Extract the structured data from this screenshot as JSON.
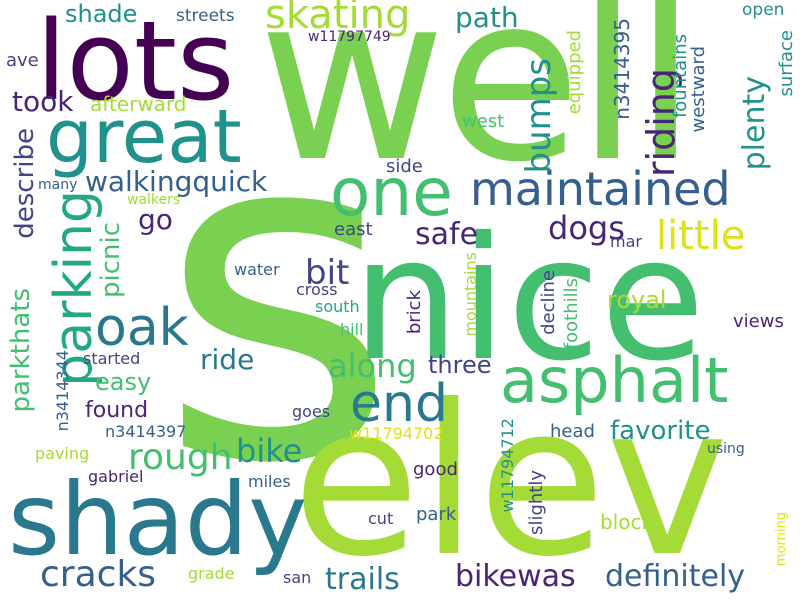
{
  "colors": {
    "background": "#ffffff",
    "palette": [
      "#440154",
      "#482576",
      "#414487",
      "#35608d",
      "#2a788e",
      "#21918c",
      "#22a884",
      "#44bf70",
      "#7ad151",
      "#a5db36",
      "#dde318"
    ]
  },
  "words": [
    {
      "text": "s",
      "color": "#7ad151"
    },
    {
      "text": "well",
      "color": "#7ad151"
    },
    {
      "text": "nice",
      "color": "#44bf70"
    },
    {
      "text": "elev",
      "color": "#a5db36"
    },
    {
      "text": "lots",
      "color": "#440154"
    },
    {
      "text": "shady",
      "color": "#2a788e"
    },
    {
      "text": "great",
      "color": "#21918c"
    },
    {
      "text": "one",
      "color": "#44bf70"
    },
    {
      "text": "maintained",
      "color": "#35608d"
    },
    {
      "text": "asphalt",
      "color": "#44bf70"
    },
    {
      "text": "parking",
      "color": "#22a884"
    },
    {
      "text": "oak",
      "color": "#2a788e"
    },
    {
      "text": "end",
      "color": "#2a788e"
    },
    {
      "text": "skating",
      "color": "#a5db36"
    },
    {
      "text": "little",
      "color": "#dde318"
    },
    {
      "text": "cracks",
      "color": "#35608d"
    },
    {
      "text": "trails",
      "color": "#2a788e"
    },
    {
      "text": "bikewas",
      "color": "#482576"
    },
    {
      "text": "definitely",
      "color": "#35608d"
    },
    {
      "text": "rough",
      "color": "#44bf70"
    },
    {
      "text": "bike",
      "color": "#21918c"
    },
    {
      "text": "along",
      "color": "#44bf70"
    },
    {
      "text": "walkingquick",
      "color": "#35608d"
    },
    {
      "text": "bit",
      "color": "#414487"
    },
    {
      "text": "riding",
      "color": "#482576"
    },
    {
      "text": "bumps",
      "color": "#21918c"
    },
    {
      "text": "plenty",
      "color": "#21918c"
    },
    {
      "text": "dogs",
      "color": "#482576"
    },
    {
      "text": "safe",
      "color": "#482576"
    },
    {
      "text": "took",
      "color": "#482576"
    },
    {
      "text": "describe",
      "color": "#414487"
    },
    {
      "text": "picnic",
      "color": "#44bf70"
    },
    {
      "text": "parkthats",
      "color": "#44bf70"
    },
    {
      "text": "ride",
      "color": "#2a788e"
    },
    {
      "text": "easy",
      "color": "#44bf70"
    },
    {
      "text": "go",
      "color": "#482576"
    },
    {
      "text": "path",
      "color": "#21918c"
    },
    {
      "text": "shade",
      "color": "#21918c"
    },
    {
      "text": "favorite",
      "color": "#21918c"
    },
    {
      "text": "royal",
      "color": "#a5db36"
    },
    {
      "text": "three",
      "color": "#414487"
    },
    {
      "text": "found",
      "color": "#482576"
    },
    {
      "text": "afterward",
      "color": "#a5db36"
    },
    {
      "text": "n3414395",
      "color": "#35608d"
    },
    {
      "text": "equipped",
      "color": "#a5db36"
    },
    {
      "text": "fountains",
      "color": "#21918c"
    },
    {
      "text": "westward",
      "color": "#35608d"
    },
    {
      "text": "surface",
      "color": "#21918c"
    },
    {
      "text": "open",
      "color": "#21918c"
    },
    {
      "text": "streets",
      "color": "#35608d"
    },
    {
      "text": "w11797749",
      "color": "#482576"
    },
    {
      "text": "ave",
      "color": "#414487"
    },
    {
      "text": "west",
      "color": "#44bf70"
    },
    {
      "text": "side",
      "color": "#414487"
    },
    {
      "text": "many",
      "color": "#35608d"
    },
    {
      "text": "walkers",
      "color": "#a5db36"
    },
    {
      "text": "east",
      "color": "#414487"
    },
    {
      "text": "water",
      "color": "#35608d"
    },
    {
      "text": "cross",
      "color": "#414487"
    },
    {
      "text": "south",
      "color": "#22a884"
    },
    {
      "text": "hill",
      "color": "#44bf70"
    },
    {
      "text": "brick",
      "color": "#482576"
    },
    {
      "text": "mountains",
      "color": "#a5db36"
    },
    {
      "text": "decline",
      "color": "#414487"
    },
    {
      "text": "foothills",
      "color": "#44bf70"
    },
    {
      "text": "mar",
      "color": "#414487"
    },
    {
      "text": "views",
      "color": "#482576"
    },
    {
      "text": "started",
      "color": "#414487"
    },
    {
      "text": "n3414344",
      "color": "#35608d"
    },
    {
      "text": "n3414397",
      "color": "#35608d"
    },
    {
      "text": "w11794702",
      "color": "#dde318"
    },
    {
      "text": "w11794712",
      "color": "#21918c"
    },
    {
      "text": "head",
      "color": "#35608d"
    },
    {
      "text": "goes",
      "color": "#414487"
    },
    {
      "text": "paving",
      "color": "#a5db36"
    },
    {
      "text": "gabriel",
      "color": "#482576"
    },
    {
      "text": "good",
      "color": "#482576"
    },
    {
      "text": "miles",
      "color": "#35608d"
    },
    {
      "text": "using",
      "color": "#35608d"
    },
    {
      "text": "slightly",
      "color": "#414487"
    },
    {
      "text": "park",
      "color": "#35608d"
    },
    {
      "text": "cut",
      "color": "#414487"
    },
    {
      "text": "block",
      "color": "#a5db36"
    },
    {
      "text": "morning",
      "color": "#dde318"
    },
    {
      "text": "grade",
      "color": "#a5db36"
    },
    {
      "text": "san",
      "color": "#414487"
    }
  ]
}
